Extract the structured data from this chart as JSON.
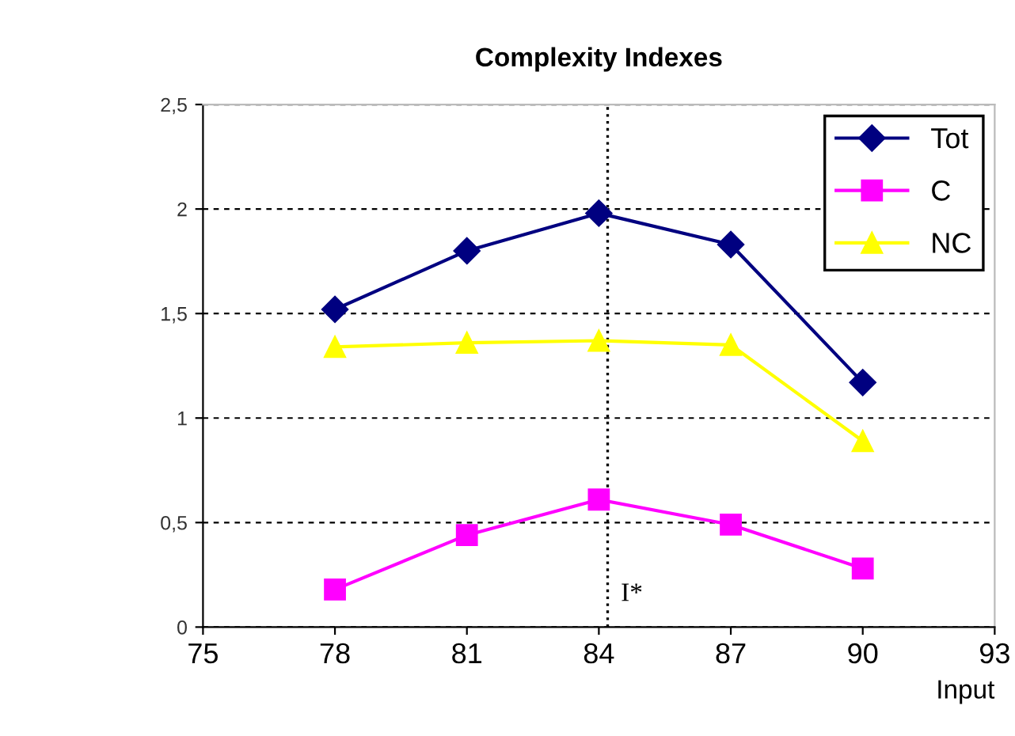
{
  "chart_data": {
    "type": "line",
    "title": "Complexity Indexes",
    "xlabel": "Input",
    "x": [
      78,
      81,
      84,
      87,
      90
    ],
    "series": [
      {
        "name": "Tot",
        "color": "#000080",
        "marker": "diamond",
        "values": [
          1.52,
          1.8,
          1.98,
          1.83,
          1.17
        ]
      },
      {
        "name": "C",
        "color": "#ff00ff",
        "marker": "square",
        "values": [
          0.18,
          0.44,
          0.61,
          0.49,
          0.28
        ]
      },
      {
        "name": "NC",
        "color": "#ffff00",
        "marker": "triangle",
        "values": [
          1.34,
          1.36,
          1.37,
          1.35,
          0.89
        ]
      }
    ],
    "xlim": [
      75,
      93
    ],
    "xticks": [
      75,
      78,
      81,
      84,
      87,
      90,
      93
    ],
    "ylim": [
      0,
      2.5
    ],
    "yticks": [
      0,
      {
        "value": 0.5,
        "label": "0,5"
      },
      1,
      {
        "value": 1.5,
        "label": "1,5"
      },
      2,
      {
        "value": 2.5,
        "label": "2,5"
      }
    ],
    "grid": "y",
    "legend": "top right",
    "line_style": "solid",
    "ref_lines": [
      {
        "axis": "x",
        "value": 84.2,
        "label": "I*",
        "color": "#000000",
        "line_style": "dotted"
      }
    ]
  }
}
